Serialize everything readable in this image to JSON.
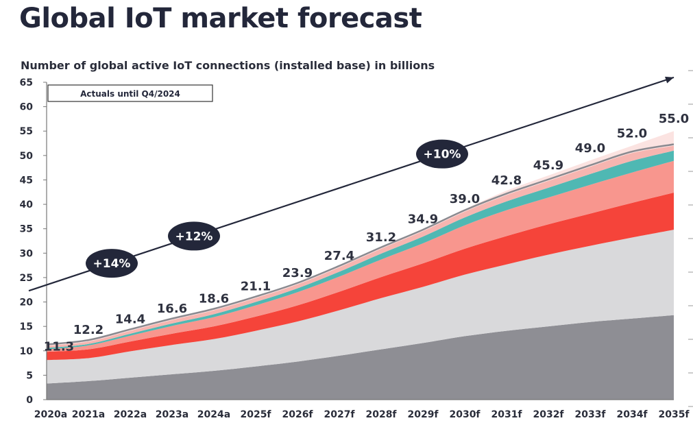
{
  "title": "Global IoT market forecast",
  "chart_data": {
    "type": "area",
    "stacked": true,
    "title": "Global IoT market forecast",
    "subtitle": "Number of global active IoT connections (installed base) in billions",
    "xlabel": "",
    "ylabel": "",
    "ylim": [
      0,
      65
    ],
    "yticks": [
      0,
      5,
      10,
      15,
      20,
      25,
      30,
      35,
      40,
      45,
      50,
      55,
      60,
      65
    ],
    "categories": [
      "2020a",
      "2021a",
      "2022a",
      "2023a",
      "2024a",
      "2025f",
      "2026f",
      "2027f",
      "2028f",
      "2029f",
      "2030f",
      "2031f",
      "2032f",
      "2033f",
      "2034f",
      "2035f"
    ],
    "totals": [
      "11.3",
      "12.2",
      "14.4",
      "16.6",
      "18.6",
      "21.1",
      "23.9",
      "27.4",
      "31.2",
      "34.9",
      "39.0",
      "42.8",
      "45.9",
      "49.0",
      "52.0",
      "55.0"
    ],
    "series": [
      {
        "color": "#8e8e94",
        "values": [
          3.3,
          3.8,
          4.5,
          5.2,
          5.9,
          6.8,
          7.8,
          9.0,
          10.3,
          11.6,
          13.0,
          14.1,
          15.0,
          15.9,
          16.6,
          17.3
        ]
      },
      {
        "color": "#d9d9db",
        "values": [
          4.8,
          4.7,
          5.4,
          6.0,
          6.5,
          7.3,
          8.2,
          9.3,
          10.5,
          11.5,
          12.6,
          13.6,
          14.7,
          15.6,
          16.6,
          17.5
        ]
      },
      {
        "color": "#f5443a",
        "values": [
          1.7,
          1.8,
          2.0,
          2.3,
          2.6,
          2.9,
          3.3,
          3.8,
          4.3,
          4.8,
          5.3,
          5.8,
          6.2,
          6.6,
          7.1,
          7.6
        ]
      },
      {
        "color": "#f8968e",
        "values": [
          0.5,
          0.8,
          1.2,
          1.6,
          1.9,
          2.3,
          2.7,
          3.1,
          3.6,
          4.1,
          4.8,
          5.3,
          5.5,
          5.9,
          6.2,
          6.5
        ]
      },
      {
        "color": "#4fb8b3",
        "values": [
          0.3,
          0.3,
          0.4,
          0.5,
          0.6,
          0.7,
          0.8,
          1.0,
          1.2,
          1.4,
          1.6,
          1.8,
          2.0,
          2.2,
          2.4,
          2.1
        ]
      },
      {
        "color": "#f6b5b0",
        "values": [
          0.4,
          0.5,
          0.6,
          0.7,
          0.8,
          0.8,
          0.8,
          0.9,
          1.0,
          1.1,
          1.2,
          1.3,
          1.4,
          1.5,
          1.6,
          1.0
        ]
      },
      {
        "color": "#fbe3e1",
        "values": [
          0.3,
          0.3,
          0.3,
          0.3,
          0.3,
          0.3,
          0.3,
          0.3,
          0.3,
          0.4,
          0.5,
          0.9,
          1.1,
          1.3,
          1.5,
          3.0
        ]
      }
    ],
    "trend_line": {
      "from": [
        "2020a",
        22.3
      ],
      "to": [
        "2035f",
        66
      ]
    },
    "growth_bubbles": [
      {
        "label": "+14%"
      },
      {
        "label": "+12%"
      },
      {
        "label": "+10%"
      }
    ],
    "annotation": "Actuals until Q4/2024",
    "legend": "none",
    "grid": false
  }
}
